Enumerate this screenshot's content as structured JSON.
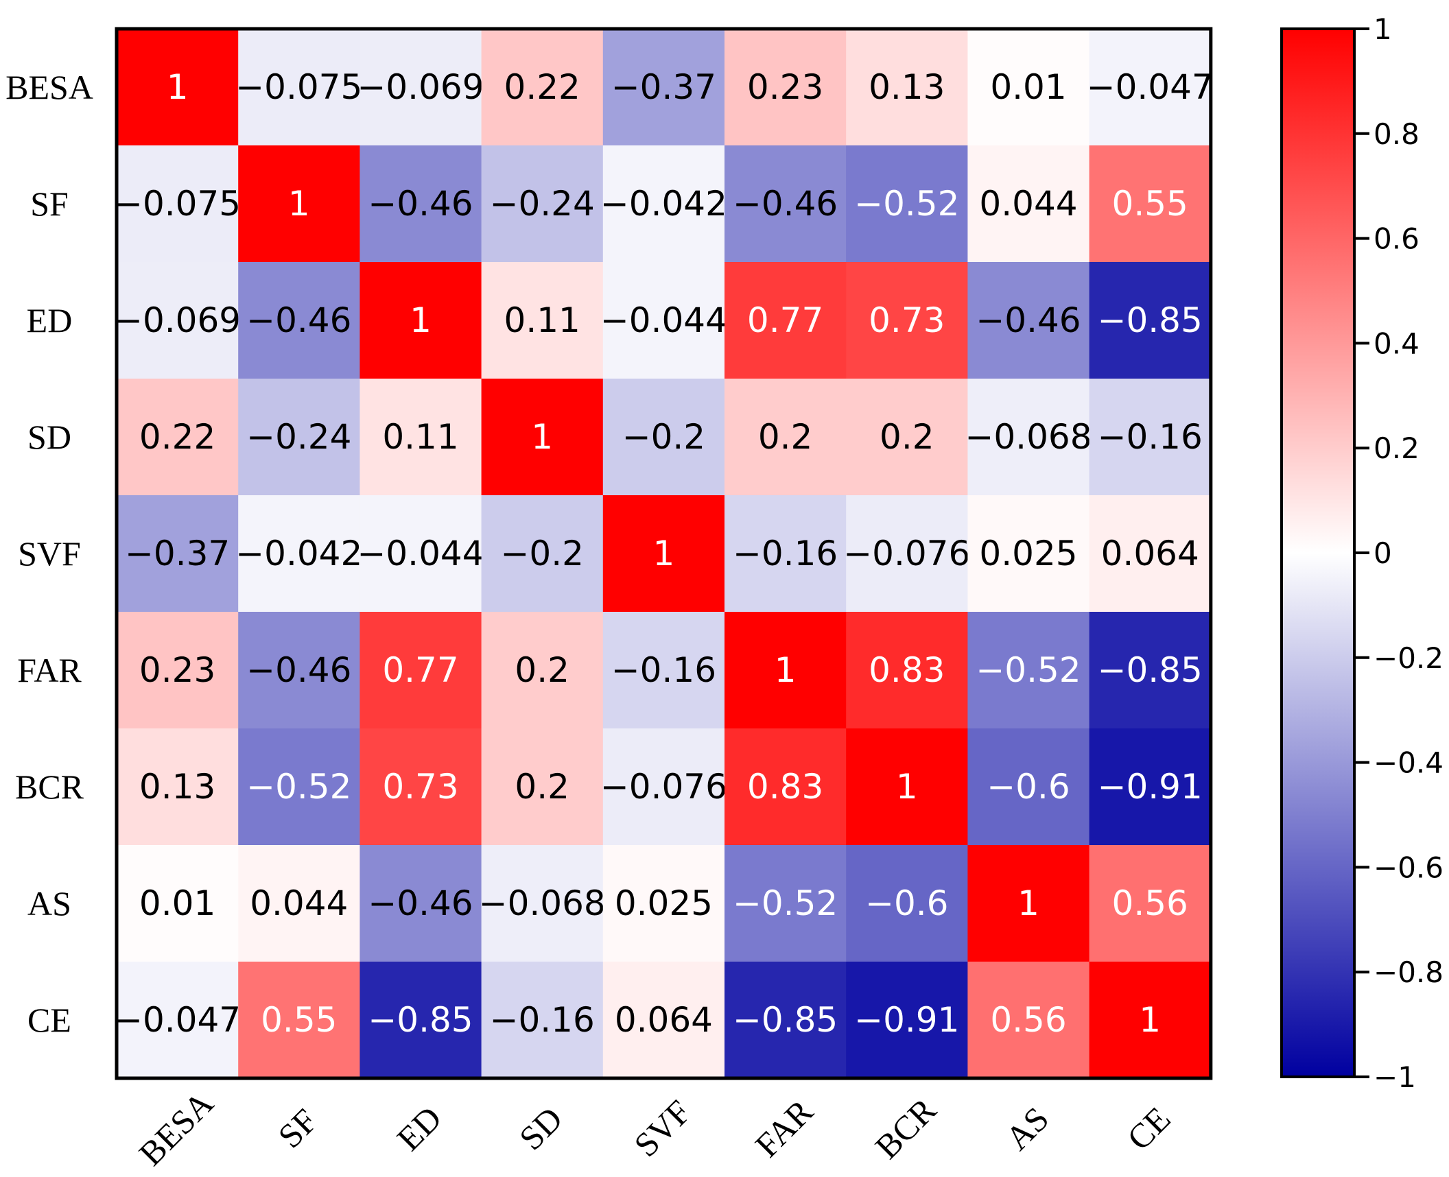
{
  "chart_data": {
    "type": "heatmap",
    "title": "",
    "row_labels": [
      "BESA",
      "SF",
      "ED",
      "SD",
      "SVF",
      "FAR",
      "BCR",
      "AS",
      "CE"
    ],
    "col_labels": [
      "BESA",
      "SF",
      "ED",
      "SD",
      "SVF",
      "FAR",
      "BCR",
      "AS",
      "CE"
    ],
    "values": [
      [
        1,
        -0.075,
        -0.069,
        0.22,
        -0.37,
        0.23,
        0.13,
        0.01,
        -0.047
      ],
      [
        -0.075,
        1,
        -0.46,
        -0.24,
        -0.042,
        -0.46,
        -0.52,
        0.044,
        0.55
      ],
      [
        -0.069,
        -0.46,
        1,
        0.11,
        -0.044,
        0.77,
        0.73,
        -0.46,
        -0.85
      ],
      [
        0.22,
        -0.24,
        0.11,
        1,
        -0.2,
        0.2,
        0.2,
        -0.068,
        -0.16
      ],
      [
        -0.37,
        -0.042,
        -0.044,
        -0.2,
        1,
        -0.16,
        -0.076,
        0.025,
        0.064
      ],
      [
        0.23,
        -0.46,
        0.77,
        0.2,
        -0.16,
        1,
        0.83,
        -0.52,
        -0.85
      ],
      [
        0.13,
        -0.52,
        0.73,
        0.2,
        -0.076,
        0.83,
        1,
        -0.6,
        -0.91
      ],
      [
        0.01,
        0.044,
        -0.46,
        -0.068,
        0.025,
        -0.52,
        -0.6,
        1,
        0.56
      ],
      [
        -0.047,
        0.55,
        -0.85,
        -0.16,
        0.064,
        -0.85,
        -0.91,
        0.56,
        1
      ]
    ],
    "cell_labels": [
      [
        "1",
        "−0.075",
        "−0.069",
        "0.22",
        "−0.37",
        "0.23",
        "0.13",
        "0.01",
        "−0.047"
      ],
      [
        "−0.075",
        "1",
        "−0.46",
        "−0.24",
        "−0.042",
        "−0.46",
        "−0.52",
        "0.044",
        "0.55"
      ],
      [
        "−0.069",
        "−0.46",
        "1",
        "0.11",
        "−0.044",
        "0.77",
        "0.73",
        "−0.46",
        "−0.85"
      ],
      [
        "0.22",
        "−0.24",
        "0.11",
        "1",
        "−0.2",
        "0.2",
        "0.2",
        "−0.068",
        "−0.16"
      ],
      [
        "−0.37",
        "−0.042",
        "−0.044",
        "−0.2",
        "1",
        "−0.16",
        "−0.076",
        "0.025",
        "0.064"
      ],
      [
        "0.23",
        "−0.46",
        "0.77",
        "0.2",
        "−0.16",
        "1",
        "0.83",
        "−0.52",
        "−0.85"
      ],
      [
        "0.13",
        "−0.52",
        "0.73",
        "0.2",
        "−0.076",
        "0.83",
        "1",
        "−0.6",
        "−0.91"
      ],
      [
        "0.01",
        "0.044",
        "−0.46",
        "−0.068",
        "0.025",
        "−0.52",
        "−0.6",
        "1",
        "0.56"
      ],
      [
        "−0.047",
        "0.55",
        "−0.85",
        "−0.16",
        "0.064",
        "−0.85",
        "−0.91",
        "0.56",
        "1"
      ]
    ],
    "colorbar": {
      "range": [
        -1,
        1
      ],
      "ticks": [
        1,
        0.8,
        0.6,
        0.4,
        0.2,
        0,
        -0.2,
        -0.4,
        -0.6,
        -0.8,
        -1
      ],
      "tick_labels": [
        "1",
        "0.8",
        "0.6",
        "0.4",
        "0.2",
        "0",
        "−0.2",
        "−0.4",
        "−0.6",
        "−0.8",
        "−1"
      ],
      "colors": {
        "low": "#0000a0",
        "mid": "#ffffff",
        "high": "#ff0000"
      }
    }
  }
}
